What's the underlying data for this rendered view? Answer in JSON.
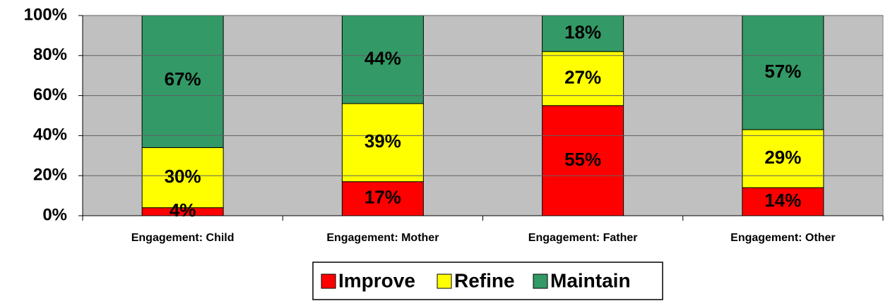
{
  "chart_data": {
    "type": "stacked_bar",
    "categories": [
      "Engagement: Child",
      "Engagement: Mother",
      "Engagement: Father",
      "Engagement: Other"
    ],
    "series": [
      {
        "name": "Improve",
        "color": "#ff0000",
        "values": [
          4,
          17,
          55,
          14
        ],
        "value_labels": [
          "4%",
          "17%",
          "55%",
          "14%"
        ]
      },
      {
        "name": "Refine",
        "color": "#ffff00",
        "values": [
          30,
          39,
          27,
          29
        ],
        "value_labels": [
          "30%",
          "39%",
          "27%",
          "29%"
        ]
      },
      {
        "name": "Maintain",
        "color": "#339966",
        "values": [
          67,
          44,
          18,
          57
        ],
        "value_labels": [
          "67%",
          "44%",
          "18%",
          "57%"
        ]
      }
    ],
    "ylim": [
      0,
      100
    ],
    "yticks": [
      {
        "value": 0,
        "label": "0%"
      },
      {
        "value": 20,
        "label": "20%"
      },
      {
        "value": 40,
        "label": "40%"
      },
      {
        "value": 60,
        "label": "60%"
      },
      {
        "value": 80,
        "label": "80%"
      },
      {
        "value": 100,
        "label": "100%"
      }
    ],
    "grid": true,
    "legend": "bottom"
  }
}
